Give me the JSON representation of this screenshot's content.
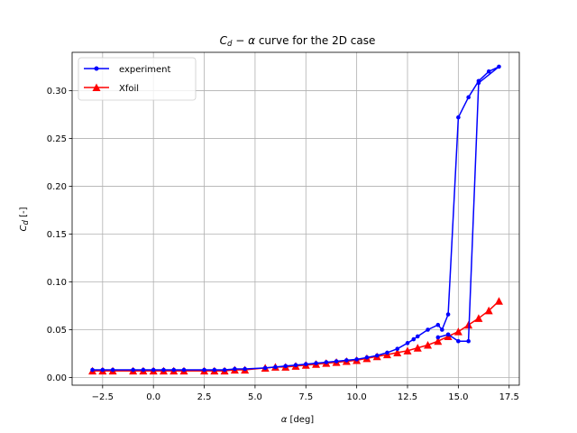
{
  "chart_data": {
    "type": "line",
    "title": "C_d - α curve for the 2D case",
    "title_parts": {
      "var1": "C",
      "sub1": "d",
      "op": " − ",
      "var2": "α",
      "rest": " curve for the 2D case"
    },
    "xlabel": "α [deg]",
    "xlabel_parts": {
      "var": "α",
      "rest": " [deg]"
    },
    "ylabel": "C_d [-]",
    "ylabel_parts": {
      "var": "C",
      "sub": "d",
      "rest": " [-]"
    },
    "xlim": [
      -4.0,
      18.0
    ],
    "ylim": [
      -0.008,
      0.34
    ],
    "xticks": [
      -2.5,
      0.0,
      2.5,
      5.0,
      7.5,
      10.0,
      12.5,
      15.0,
      17.5
    ],
    "xtick_labels": [
      "−2.5",
      "0.0",
      "2.5",
      "5.0",
      "7.5",
      "10.0",
      "12.5",
      "15.0",
      "17.5"
    ],
    "yticks": [
      0.0,
      0.05,
      0.1,
      0.15,
      0.2,
      0.25,
      0.3
    ],
    "ytick_labels": [
      "0.00",
      "0.05",
      "0.10",
      "0.15",
      "0.20",
      "0.25",
      "0.30"
    ],
    "grid": true,
    "legend_position": "top-left",
    "series": [
      {
        "name": "experiment",
        "color": "#0000ff",
        "marker": "dot",
        "x": [
          -3.0,
          -2.5,
          -2.0,
          -1.0,
          -0.5,
          0.0,
          0.5,
          1.0,
          1.5,
          2.5,
          3.0,
          3.5,
          4.0,
          4.5,
          5.5,
          6.0,
          6.5,
          7.0,
          7.5,
          8.0,
          8.5,
          9.0,
          9.5,
          10.0,
          10.5,
          11.0,
          11.5,
          12.0,
          12.5,
          12.8,
          13.0,
          13.5,
          14.0,
          14.2,
          14.5,
          15.0,
          15.5,
          16.0,
          16.5,
          17.0,
          16.0,
          15.5,
          15.0,
          14.5,
          14.0
        ],
        "y": [
          0.008,
          0.008,
          0.008,
          0.008,
          0.008,
          0.008,
          0.008,
          0.008,
          0.008,
          0.008,
          0.008,
          0.008,
          0.009,
          0.009,
          0.01,
          0.011,
          0.012,
          0.013,
          0.014,
          0.015,
          0.016,
          0.017,
          0.018,
          0.019,
          0.021,
          0.023,
          0.026,
          0.03,
          0.036,
          0.04,
          0.043,
          0.05,
          0.055,
          0.05,
          0.066,
          0.272,
          0.293,
          0.31,
          0.32,
          0.325,
          0.308,
          0.038,
          0.038,
          0.045,
          0.042
        ]
      },
      {
        "name": "Xfoil",
        "color": "#ff0000",
        "marker": "triangle",
        "x": [
          -3.0,
          -2.5,
          -2.0,
          -1.0,
          -0.5,
          0.0,
          0.5,
          1.0,
          1.5,
          2.5,
          3.0,
          3.5,
          4.0,
          4.5,
          5.5,
          6.0,
          6.5,
          7.0,
          7.5,
          8.0,
          8.5,
          9.0,
          9.5,
          10.0,
          10.5,
          11.0,
          11.5,
          12.0,
          12.5,
          13.0,
          13.5,
          14.0,
          14.5,
          15.0,
          15.5,
          16.0,
          16.5,
          17.0
        ],
        "y": [
          0.007,
          0.007,
          0.007,
          0.007,
          0.007,
          0.007,
          0.007,
          0.007,
          0.007,
          0.007,
          0.007,
          0.007,
          0.008,
          0.008,
          0.01,
          0.011,
          0.011,
          0.012,
          0.013,
          0.014,
          0.015,
          0.016,
          0.017,
          0.018,
          0.02,
          0.022,
          0.024,
          0.026,
          0.028,
          0.031,
          0.034,
          0.038,
          0.043,
          0.048,
          0.055,
          0.062,
          0.07,
          0.08
        ]
      }
    ]
  }
}
